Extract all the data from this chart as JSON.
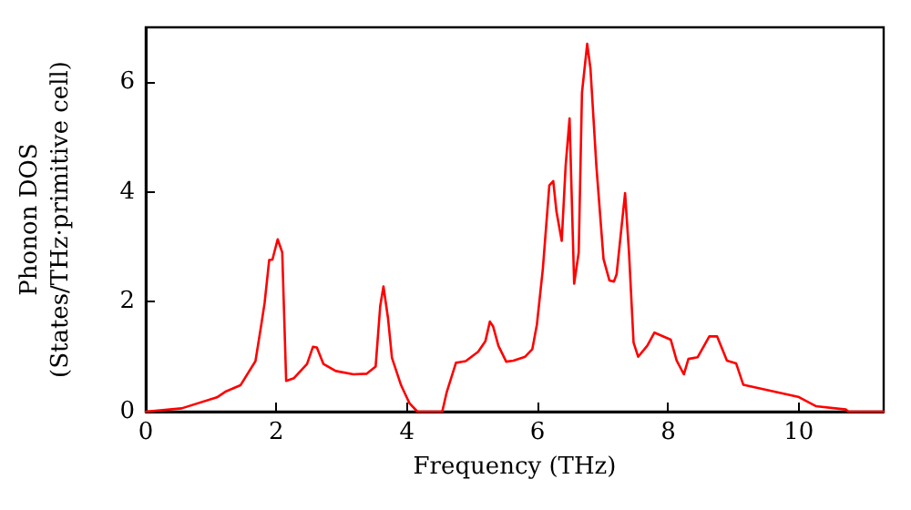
{
  "chart_data": {
    "type": "line",
    "xlabel": "Frequency (THz)",
    "ylabel": "Phonon DOS\n(States/THz·primitive cell)",
    "xlim": [
      0,
      11.3
    ],
    "ylim": [
      0,
      7
    ],
    "xticks": [
      0,
      2,
      4,
      6,
      8,
      10
    ],
    "yticks": [
      0,
      2,
      4,
      6
    ],
    "grid": false,
    "marker": "none",
    "line_style": "solid",
    "series": [
      {
        "color": "#ff0000",
        "x": [
          0,
          0.55,
          1.09,
          1.23,
          1.45,
          1.68,
          1.77,
          1.82,
          1.89,
          1.94,
          2.02,
          2.09,
          2.15,
          2.27,
          2.47,
          2.56,
          2.62,
          2.72,
          2.91,
          3.18,
          3.38,
          3.52,
          3.59,
          3.64,
          3.71,
          3.77,
          3.91,
          4.04,
          4.16,
          4.54,
          4.61,
          4.75,
          4.9,
          5.09,
          5.2,
          5.27,
          5.32,
          5.4,
          5.52,
          5.63,
          5.81,
          5.92,
          5.99,
          6.08,
          6.18,
          6.24,
          6.29,
          6.37,
          6.43,
          6.49,
          6.56,
          6.63,
          6.68,
          6.76,
          6.81,
          6.9,
          7.01,
          7.1,
          7.17,
          7.21,
          7.34,
          7.4,
          7.47,
          7.54,
          7.68,
          7.79,
          8.04,
          8.13,
          8.24,
          8.31,
          8.45,
          8.63,
          8.75,
          8.9,
          9.04,
          9.15,
          9.99,
          10.26,
          10.72,
          10.76,
          11.3
        ],
        "values": [
          0,
          0.06,
          0.26,
          0.37,
          0.48,
          0.92,
          1.59,
          1.98,
          2.76,
          2.77,
          3.14,
          2.9,
          0.56,
          0.61,
          0.87,
          1.18,
          1.17,
          0.87,
          0.74,
          0.68,
          0.69,
          0.82,
          1.92,
          2.28,
          1.7,
          0.98,
          0.48,
          0.15,
          0,
          0,
          0.36,
          0.89,
          0.92,
          1.09,
          1.28,
          1.64,
          1.55,
          1.2,
          0.91,
          0.93,
          1.0,
          1.14,
          1.59,
          2.59,
          4.12,
          4.2,
          3.64,
          3.11,
          4.48,
          5.34,
          2.33,
          2.9,
          5.81,
          6.7,
          6.25,
          4.48,
          2.78,
          2.39,
          2.37,
          2.5,
          3.98,
          2.9,
          1.26,
          1.0,
          1.2,
          1.44,
          1.31,
          0.93,
          0.68,
          0.96,
          0.99,
          1.37,
          1.37,
          0.93,
          0.88,
          0.49,
          0.27,
          0.1,
          0.04,
          0,
          0
        ]
      }
    ]
  }
}
